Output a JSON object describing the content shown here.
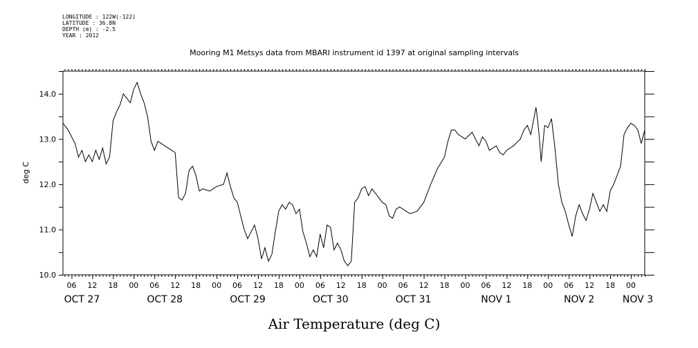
{
  "header": {
    "longitude": "LONGITUDE : 122W(-122)",
    "latitude": "LATITUDE : 36.8N",
    "depth": "DEPTH (m) : -2.5",
    "year": "YEAR : 2012"
  },
  "chart_data": {
    "type": "line",
    "title": "Mooring M1 Metsys data from MBARI instrument id 1397 at original sampling intervals",
    "xlabel": "Air Temperature (deg C)",
    "ylabel": "deg C",
    "ylim": [
      10.0,
      14.5
    ],
    "y_ticks": [
      10.0,
      11.0,
      12.0,
      13.0,
      14.0
    ],
    "y_tick_labels": [
      "10.0",
      "11.0",
      "12.0",
      "13.0",
      "14.0"
    ],
    "x_unit": "hours since OCT 27 00:00",
    "xlim": [
      3.5,
      172
    ],
    "hour_ticks": [
      {
        "h": 6,
        "label": "06"
      },
      {
        "h": 12,
        "label": "12"
      },
      {
        "h": 18,
        "label": "18"
      },
      {
        "h": 24,
        "label": "00"
      },
      {
        "h": 30,
        "label": "06"
      },
      {
        "h": 36,
        "label": "12"
      },
      {
        "h": 42,
        "label": "18"
      },
      {
        "h": 48,
        "label": "00"
      },
      {
        "h": 54,
        "label": "06"
      },
      {
        "h": 60,
        "label": "12"
      },
      {
        "h": 66,
        "label": "18"
      },
      {
        "h": 72,
        "label": "00"
      },
      {
        "h": 78,
        "label": "06"
      },
      {
        "h": 84,
        "label": "12"
      },
      {
        "h": 90,
        "label": "18"
      },
      {
        "h": 96,
        "label": "00"
      },
      {
        "h": 102,
        "label": "06"
      },
      {
        "h": 108,
        "label": "12"
      },
      {
        "h": 114,
        "label": "18"
      },
      {
        "h": 120,
        "label": "00"
      },
      {
        "h": 126,
        "label": "06"
      },
      {
        "h": 132,
        "label": "12"
      },
      {
        "h": 138,
        "label": "18"
      },
      {
        "h": 144,
        "label": "00"
      },
      {
        "h": 150,
        "label": "06"
      },
      {
        "h": 156,
        "label": "12"
      },
      {
        "h": 162,
        "label": "18"
      },
      {
        "h": 168,
        "label": "00"
      }
    ],
    "day_labels": [
      {
        "h": 9,
        "label": "OCT 27"
      },
      {
        "h": 33,
        "label": "OCT 28"
      },
      {
        "h": 57,
        "label": "OCT 29"
      },
      {
        "h": 81,
        "label": "OCT 30"
      },
      {
        "h": 105,
        "label": "OCT 31"
      },
      {
        "h": 129,
        "label": "NOV  1"
      },
      {
        "h": 153,
        "label": "NOV  2"
      },
      {
        "h": 170,
        "label": "NOV  3"
      }
    ],
    "x": [
      3.5,
      5,
      7,
      8,
      9,
      10,
      11,
      12,
      13,
      14,
      15,
      16,
      17,
      18,
      19,
      20,
      21,
      22,
      23,
      24,
      25,
      26,
      27,
      28,
      29,
      30,
      31,
      32,
      33,
      34,
      35,
      36,
      37,
      38,
      39,
      40,
      41,
      42,
      43,
      44,
      46,
      48,
      50,
      51,
      52,
      53,
      54,
      55,
      56,
      57,
      58,
      59,
      60,
      61,
      62,
      63,
      64,
      65,
      66,
      67,
      68,
      69,
      70,
      71,
      72,
      73,
      74,
      75,
      76,
      77,
      78,
      79,
      80,
      81,
      82,
      83,
      84,
      85,
      86,
      87,
      88,
      89,
      90,
      91,
      92,
      93,
      94,
      95,
      96,
      97,
      98,
      99,
      100,
      101,
      102,
      103,
      104,
      106,
      108,
      110,
      112,
      114,
      115,
      116,
      117,
      118,
      120,
      122,
      124,
      125,
      126,
      127,
      128,
      129,
      130,
      131,
      132,
      134,
      136,
      137,
      138,
      139,
      140,
      140.5,
      141,
      141.5,
      142,
      143,
      144,
      145,
      146,
      147,
      148,
      149,
      150,
      151,
      152,
      153,
      154,
      155,
      156,
      157,
      158,
      159,
      160,
      161,
      162,
      163,
      164,
      165,
      166,
      167,
      168,
      169,
      170,
      171,
      172
    ],
    "y": [
      13.35,
      13.2,
      12.9,
      12.6,
      12.75,
      12.5,
      12.65,
      12.5,
      12.75,
      12.55,
      12.8,
      12.45,
      12.6,
      13.4,
      13.6,
      13.75,
      14.0,
      13.9,
      13.8,
      14.1,
      14.25,
      14.0,
      13.8,
      13.5,
      12.95,
      12.75,
      12.95,
      12.9,
      12.85,
      12.8,
      12.75,
      12.7,
      11.7,
      11.65,
      11.8,
      12.3,
      12.4,
      12.2,
      11.85,
      11.9,
      11.85,
      11.95,
      12.0,
      12.25,
      11.95,
      11.7,
      11.6,
      11.3,
      11.0,
      10.8,
      10.95,
      11.1,
      10.8,
      10.35,
      10.6,
      10.3,
      10.45,
      10.95,
      11.4,
      11.55,
      11.45,
      11.6,
      11.55,
      11.35,
      11.45,
      10.95,
      10.7,
      10.4,
      10.55,
      10.4,
      10.9,
      10.6,
      11.1,
      11.05,
      10.55,
      10.7,
      10.55,
      10.3,
      10.2,
      10.3,
      11.6,
      11.7,
      11.9,
      11.95,
      11.75,
      11.9,
      11.8,
      11.7,
      11.6,
      11.55,
      11.3,
      11.25,
      11.45,
      11.5,
      11.45,
      11.4,
      11.35,
      11.4,
      11.6,
      12.0,
      12.35,
      12.6,
      12.95,
      13.2,
      13.2,
      13.1,
      13.0,
      13.15,
      12.85,
      13.05,
      12.95,
      12.75,
      12.8,
      12.85,
      12.7,
      12.65,
      12.75,
      12.85,
      13.0,
      13.2,
      13.3,
      13.1,
      13.5,
      13.7,
      13.4,
      13.0,
      12.5,
      13.3,
      13.25,
      13.45,
      12.8,
      12.0,
      11.6,
      11.4,
      11.1,
      10.85,
      11.3,
      11.55,
      11.35,
      11.2,
      11.45,
      11.8,
      11.6,
      11.4,
      11.55,
      11.4,
      11.85,
      12.0,
      12.2,
      12.4,
      13.1,
      13.25,
      13.35,
      13.3,
      13.2,
      12.9,
      13.2
    ]
  }
}
